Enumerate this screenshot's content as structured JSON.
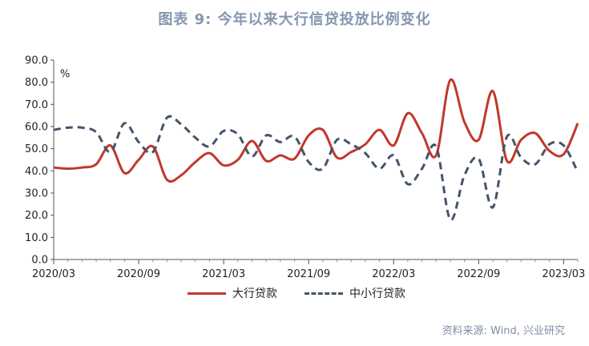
{
  "chart_data": {
    "type": "line",
    "title": "图表 9:  今年以来大行信贷投放比例变化",
    "ylabel": "%",
    "ylim": [
      0,
      90
    ],
    "yticks": [
      "90.0",
      "80.0",
      "70.0",
      "60.0",
      "50.0",
      "40.0",
      "30.0",
      "20.0",
      "10.0",
      "0.0"
    ],
    "xticks": [
      {
        "label": "2020/03",
        "month": 0
      },
      {
        "label": "2020/09",
        "month": 6
      },
      {
        "label": "2021/03",
        "month": 12
      },
      {
        "label": "2021/09",
        "month": 18
      },
      {
        "label": "2022/03",
        "month": 24
      },
      {
        "label": "2022/09",
        "month": 30
      },
      {
        "label": "2023/03",
        "month": 36
      }
    ],
    "x": [
      0,
      1,
      2,
      3,
      4,
      5,
      6,
      7,
      8,
      9,
      10,
      11,
      12,
      13,
      14,
      15,
      16,
      17,
      18,
      19,
      20,
      21,
      22,
      23,
      24,
      25,
      26,
      27,
      28,
      29,
      30,
      31,
      32,
      33,
      34,
      35,
      36,
      37
    ],
    "series": [
      {
        "name": "大行贷款",
        "color": "#C0392B",
        "dash": "solid",
        "values": [
          41.5,
          41,
          41.5,
          43,
          51.5,
          39,
          45,
          51,
          36,
          38,
          44,
          48,
          42.5,
          45,
          53.5,
          44.5,
          47,
          45.5,
          56,
          58.5,
          46,
          48.5,
          52,
          58.5,
          51.5,
          66,
          57,
          47,
          81,
          62,
          54,
          76,
          44.5,
          54,
          57,
          49,
          47.5,
          61.5
        ]
      },
      {
        "name": "中小行贷款",
        "color": "#44546A",
        "dash": "dashed",
        "values": [
          58.5,
          59.5,
          59.5,
          57.5,
          48.5,
          61.5,
          53,
          48.5,
          64,
          61,
          55,
          51,
          58,
          56.5,
          46.5,
          56,
          53,
          55.5,
          44,
          41,
          54,
          52,
          48,
          41,
          47,
          34,
          41,
          51,
          18,
          38,
          45.5,
          23.5,
          55.5,
          46,
          43,
          52,
          51.5,
          39.5
        ]
      }
    ]
  },
  "source_text": "资料来源: Wind, 兴业研究"
}
